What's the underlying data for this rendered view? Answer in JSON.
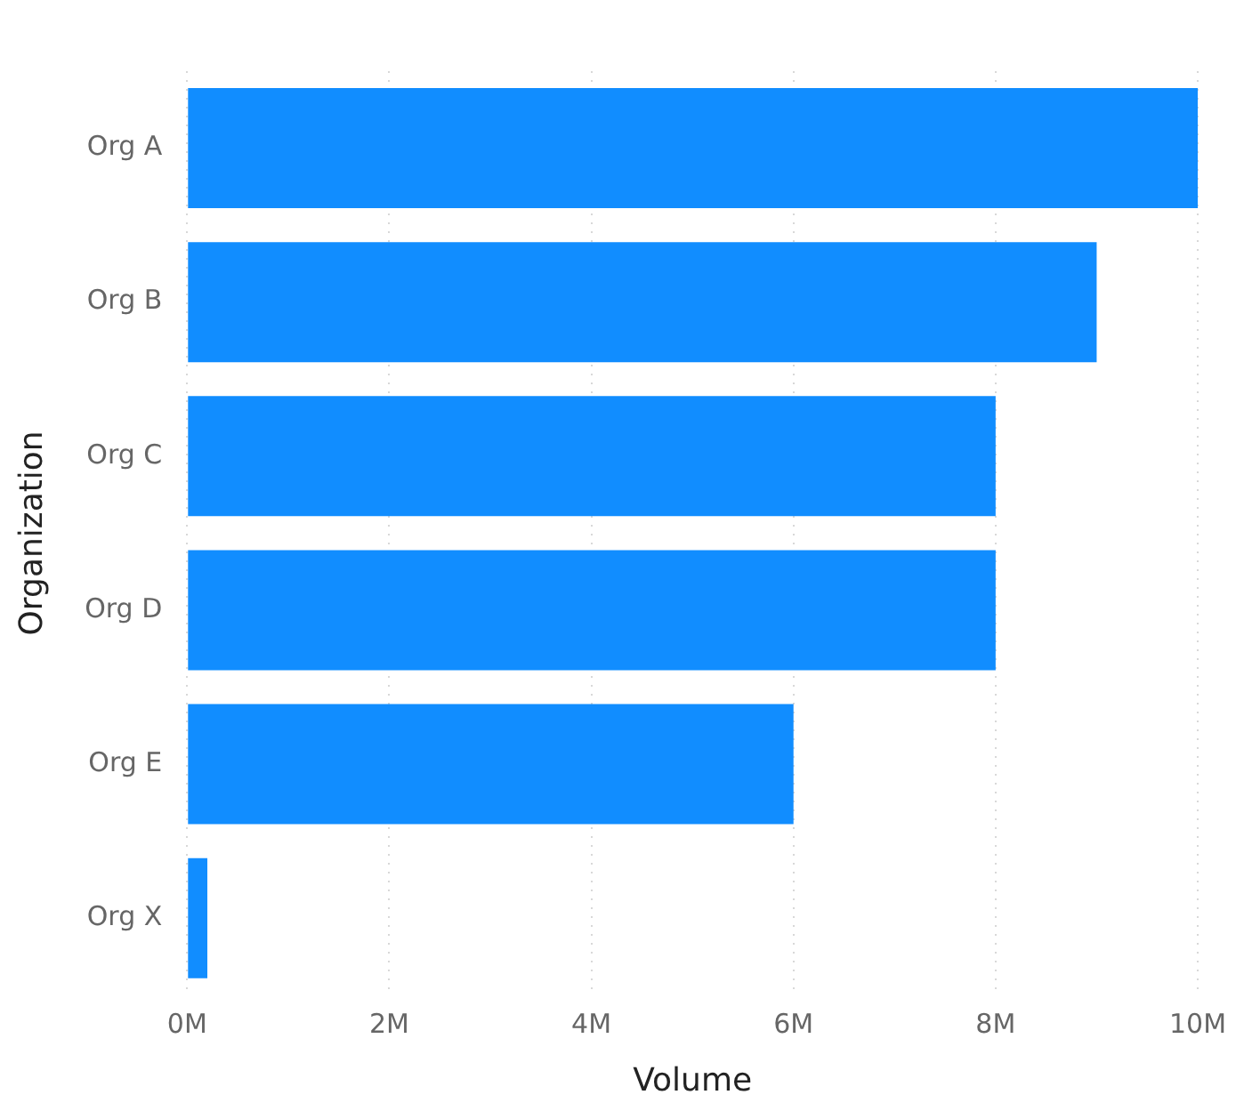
{
  "chart_data": {
    "type": "bar",
    "orientation": "horizontal",
    "xlabel": "Volume",
    "ylabel": "Organization",
    "categories": [
      "Org A",
      "Org B",
      "Org C",
      "Org D",
      "Org E",
      "Org X"
    ],
    "values": [
      10000000,
      9000000,
      8000000,
      8000000,
      6000000,
      200000
    ],
    "color": "#118dff",
    "xlim": [
      0,
      10000000
    ],
    "xticks": [
      {
        "value": 0,
        "label": "0M"
      },
      {
        "value": 2000000,
        "label": "2M"
      },
      {
        "value": 4000000,
        "label": "4M"
      },
      {
        "value": 6000000,
        "label": "6M"
      },
      {
        "value": 8000000,
        "label": "8M"
      },
      {
        "value": 10000000,
        "label": "10M"
      }
    ],
    "grid": "x"
  }
}
